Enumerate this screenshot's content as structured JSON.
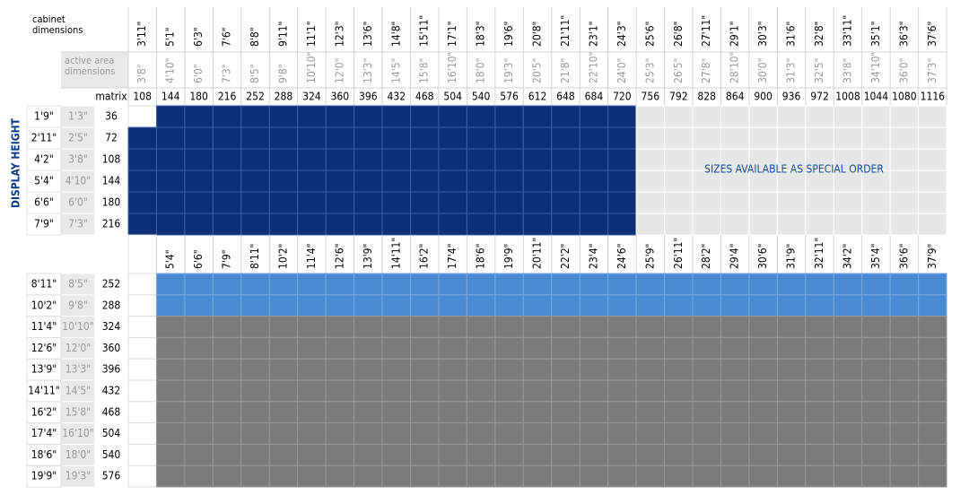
{
  "header": {
    "cabinet_label": "cabinet dimensions",
    "active_label": "active area dimensions",
    "matrix_label": "matrix",
    "side_label": "DISPLAY HEIGHT",
    "special_order": "SIZES AVAILABLE AS SPECIAL ORDER"
  },
  "columns": {
    "cabinet": [
      "3'11\"",
      "5'1\"",
      "6'3\"",
      "7'6\"",
      "8'8\"",
      "9'11\"",
      "11'1\"",
      "12'3\"",
      "13'6\"",
      "14'8\"",
      "15'11\"",
      "17'1\"",
      "18'3\"",
      "19'6\"",
      "20'8\"",
      "21'11\"",
      "23'1\"",
      "24'3\"",
      "25'6\"",
      "26'8\"",
      "27'11\"",
      "29'1\"",
      "30'3\"",
      "31'6\"",
      "32'8\"",
      "33'11\"",
      "35'1\"",
      "36'3\"",
      "37'6\""
    ],
    "active": [
      "3'8\"",
      "4'10\"",
      "6'0\"",
      "7'3\"",
      "8'5\"",
      "9'8\"",
      "10'10\"",
      "12'0\"",
      "13'3\"",
      "14'5\"",
      "15'8\"",
      "16'10\"",
      "18'0\"",
      "19'3\"",
      "20'5\"",
      "21'8\"",
      "22'10\"",
      "24'0\"",
      "25'3\"",
      "26'5\"",
      "27'8\"",
      "28'10\"",
      "30'0\"",
      "31'3\"",
      "32'5\"",
      "33'8\"",
      "34'10\"",
      "36'0\"",
      "37'3\""
    ],
    "matrix": [
      108,
      144,
      180,
      216,
      252,
      288,
      324,
      360,
      396,
      432,
      468,
      504,
      540,
      576,
      612,
      648,
      684,
      720,
      756,
      792,
      828,
      864,
      900,
      936,
      972,
      1008,
      1044,
      1080,
      1116
    ]
  },
  "mid_columns": [
    "5'4\"",
    "6'6\"",
    "7'9\"",
    "8'11\"",
    "10'2\"",
    "11'4\"",
    "12'6\"",
    "13'9\"",
    "14'11\"",
    "16'2\"",
    "17'4\"",
    "18'6\"",
    "19'9\"",
    "20'11\"",
    "22'2\"",
    "23'4\"",
    "24'6\"",
    "25'9\"",
    "26'11\"",
    "28'2\"",
    "29'4\"",
    "30'6\"",
    "31'9\"",
    "32'11\"",
    "34'2\"",
    "35'4\"",
    "36'6\"",
    "37'9\""
  ],
  "top_rows": [
    {
      "cabinet": "1'9\"",
      "active": "1'3\"",
      "matrix": 36
    },
    {
      "cabinet": "2'11\"",
      "active": "2'5\"",
      "matrix": 72
    },
    {
      "cabinet": "4'2\"",
      "active": "3'8\"",
      "matrix": 108
    },
    {
      "cabinet": "5'4\"",
      "active": "4'10\"",
      "matrix": 144
    },
    {
      "cabinet": "6'6\"",
      "active": "6'0\"",
      "matrix": 180
    },
    {
      "cabinet": "7'9\"",
      "active": "7'3\"",
      "matrix": 216
    }
  ],
  "bottom_rows": [
    {
      "cabinet": "8'11\"",
      "active": "8'5\"",
      "matrix": 252
    },
    {
      "cabinet": "10'2\"",
      "active": "9'8\"",
      "matrix": 288
    },
    {
      "cabinet": "11'4\"",
      "active": "10'10\"",
      "matrix": 324
    },
    {
      "cabinet": "12'6\"",
      "active": "12'0\"",
      "matrix": 360
    },
    {
      "cabinet": "13'9\"",
      "active": "13'3\"",
      "matrix": 396
    },
    {
      "cabinet": "14'11\"",
      "active": "14'5\"",
      "matrix": 432
    },
    {
      "cabinet": "16'2\"",
      "active": "15'8\"",
      "matrix": 468
    },
    {
      "cabinet": "17'4\"",
      "active": "16'10\"",
      "matrix": 504
    },
    {
      "cabinet": "18'6\"",
      "active": "18'0\"",
      "matrix": 540
    },
    {
      "cabinet": "19'9\"",
      "active": "19'3\"",
      "matrix": 576
    }
  ]
}
